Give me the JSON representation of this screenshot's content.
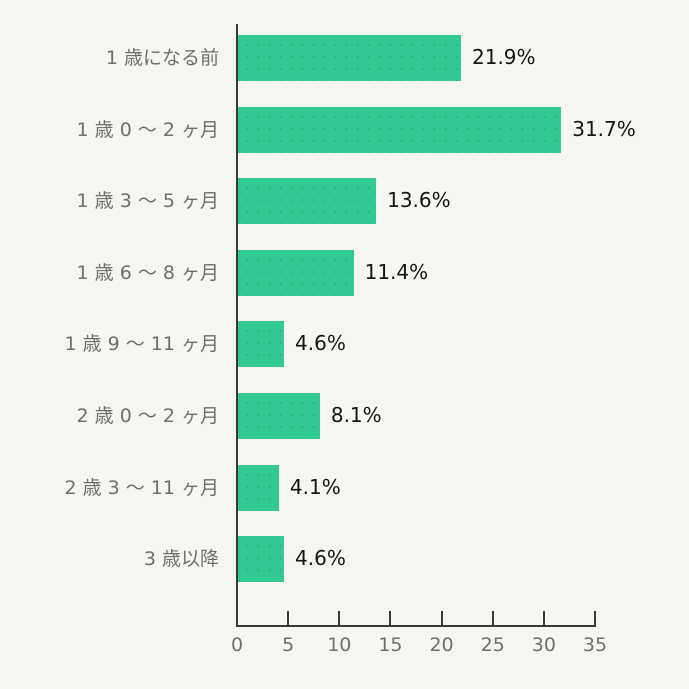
{
  "chart_data": {
    "type": "bar",
    "orientation": "horizontal",
    "title": "",
    "xlabel": "",
    "ylabel": "",
    "categories": [
      "1 歳になる前",
      "1 歳 0 〜 2 ヶ月",
      "1 歳 3 〜 5 ヶ月",
      "1 歳 6 〜 8 ヶ月",
      "1 歳 9 〜 11 ヶ月",
      "2 歳 0 〜 2 ヶ月",
      "2 歳 3 〜 11 ヶ月",
      "3 歳以降"
    ],
    "values": [
      21.9,
      31.7,
      13.6,
      11.4,
      4.6,
      8.1,
      4.1,
      4.6
    ],
    "value_labels": [
      "21.9%",
      "31.7%",
      "13.6%",
      "11.4%",
      "4.6%",
      "8.1%",
      "4.1%",
      "4.6%"
    ],
    "xlim": [
      0,
      35
    ],
    "x_ticks": [
      "0",
      "5",
      "10",
      "15",
      "20",
      "25",
      "30",
      "35"
    ],
    "grid": false,
    "legend": null,
    "colors": {
      "bar": "#33c994",
      "background": "#f6f5f0",
      "axis": "#3a3a3a",
      "category_text": "#6f6f6f",
      "value_text": "#151515"
    }
  }
}
